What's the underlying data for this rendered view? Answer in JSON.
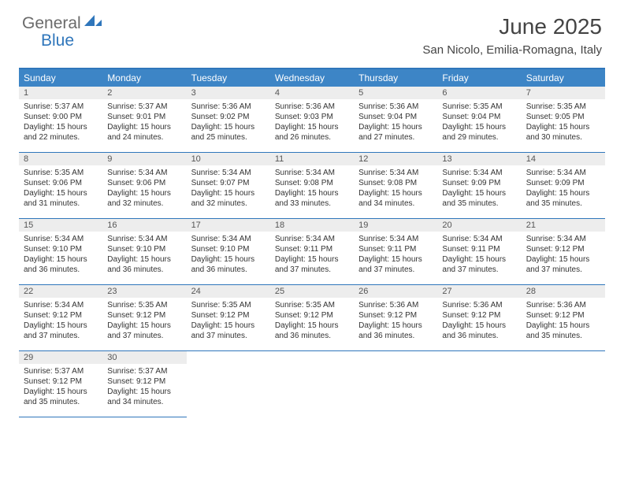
{
  "logo": {
    "text1": "General",
    "text2": "Blue"
  },
  "title": "June 2025",
  "location": "San Nicolo, Emilia-Romagna, Italy",
  "colors": {
    "accent": "#2f76bb",
    "header_bg": "#3d85c6",
    "daynum_bg": "#ededed"
  },
  "dayheads": [
    "Sunday",
    "Monday",
    "Tuesday",
    "Wednesday",
    "Thursday",
    "Friday",
    "Saturday"
  ],
  "weeks": [
    [
      {
        "n": "1",
        "sr": "Sunrise: 5:37 AM",
        "ss": "Sunset: 9:00 PM",
        "d1": "Daylight: 15 hours",
        "d2": "and 22 minutes."
      },
      {
        "n": "2",
        "sr": "Sunrise: 5:37 AM",
        "ss": "Sunset: 9:01 PM",
        "d1": "Daylight: 15 hours",
        "d2": "and 24 minutes."
      },
      {
        "n": "3",
        "sr": "Sunrise: 5:36 AM",
        "ss": "Sunset: 9:02 PM",
        "d1": "Daylight: 15 hours",
        "d2": "and 25 minutes."
      },
      {
        "n": "4",
        "sr": "Sunrise: 5:36 AM",
        "ss": "Sunset: 9:03 PM",
        "d1": "Daylight: 15 hours",
        "d2": "and 26 minutes."
      },
      {
        "n": "5",
        "sr": "Sunrise: 5:36 AM",
        "ss": "Sunset: 9:04 PM",
        "d1": "Daylight: 15 hours",
        "d2": "and 27 minutes."
      },
      {
        "n": "6",
        "sr": "Sunrise: 5:35 AM",
        "ss": "Sunset: 9:04 PM",
        "d1": "Daylight: 15 hours",
        "d2": "and 29 minutes."
      },
      {
        "n": "7",
        "sr": "Sunrise: 5:35 AM",
        "ss": "Sunset: 9:05 PM",
        "d1": "Daylight: 15 hours",
        "d2": "and 30 minutes."
      }
    ],
    [
      {
        "n": "8",
        "sr": "Sunrise: 5:35 AM",
        "ss": "Sunset: 9:06 PM",
        "d1": "Daylight: 15 hours",
        "d2": "and 31 minutes."
      },
      {
        "n": "9",
        "sr": "Sunrise: 5:34 AM",
        "ss": "Sunset: 9:06 PM",
        "d1": "Daylight: 15 hours",
        "d2": "and 32 minutes."
      },
      {
        "n": "10",
        "sr": "Sunrise: 5:34 AM",
        "ss": "Sunset: 9:07 PM",
        "d1": "Daylight: 15 hours",
        "d2": "and 32 minutes."
      },
      {
        "n": "11",
        "sr": "Sunrise: 5:34 AM",
        "ss": "Sunset: 9:08 PM",
        "d1": "Daylight: 15 hours",
        "d2": "and 33 minutes."
      },
      {
        "n": "12",
        "sr": "Sunrise: 5:34 AM",
        "ss": "Sunset: 9:08 PM",
        "d1": "Daylight: 15 hours",
        "d2": "and 34 minutes."
      },
      {
        "n": "13",
        "sr": "Sunrise: 5:34 AM",
        "ss": "Sunset: 9:09 PM",
        "d1": "Daylight: 15 hours",
        "d2": "and 35 minutes."
      },
      {
        "n": "14",
        "sr": "Sunrise: 5:34 AM",
        "ss": "Sunset: 9:09 PM",
        "d1": "Daylight: 15 hours",
        "d2": "and 35 minutes."
      }
    ],
    [
      {
        "n": "15",
        "sr": "Sunrise: 5:34 AM",
        "ss": "Sunset: 9:10 PM",
        "d1": "Daylight: 15 hours",
        "d2": "and 36 minutes."
      },
      {
        "n": "16",
        "sr": "Sunrise: 5:34 AM",
        "ss": "Sunset: 9:10 PM",
        "d1": "Daylight: 15 hours",
        "d2": "and 36 minutes."
      },
      {
        "n": "17",
        "sr": "Sunrise: 5:34 AM",
        "ss": "Sunset: 9:10 PM",
        "d1": "Daylight: 15 hours",
        "d2": "and 36 minutes."
      },
      {
        "n": "18",
        "sr": "Sunrise: 5:34 AM",
        "ss": "Sunset: 9:11 PM",
        "d1": "Daylight: 15 hours",
        "d2": "and 37 minutes."
      },
      {
        "n": "19",
        "sr": "Sunrise: 5:34 AM",
        "ss": "Sunset: 9:11 PM",
        "d1": "Daylight: 15 hours",
        "d2": "and 37 minutes."
      },
      {
        "n": "20",
        "sr": "Sunrise: 5:34 AM",
        "ss": "Sunset: 9:11 PM",
        "d1": "Daylight: 15 hours",
        "d2": "and 37 minutes."
      },
      {
        "n": "21",
        "sr": "Sunrise: 5:34 AM",
        "ss": "Sunset: 9:12 PM",
        "d1": "Daylight: 15 hours",
        "d2": "and 37 minutes."
      }
    ],
    [
      {
        "n": "22",
        "sr": "Sunrise: 5:34 AM",
        "ss": "Sunset: 9:12 PM",
        "d1": "Daylight: 15 hours",
        "d2": "and 37 minutes."
      },
      {
        "n": "23",
        "sr": "Sunrise: 5:35 AM",
        "ss": "Sunset: 9:12 PM",
        "d1": "Daylight: 15 hours",
        "d2": "and 37 minutes."
      },
      {
        "n": "24",
        "sr": "Sunrise: 5:35 AM",
        "ss": "Sunset: 9:12 PM",
        "d1": "Daylight: 15 hours",
        "d2": "and 37 minutes."
      },
      {
        "n": "25",
        "sr": "Sunrise: 5:35 AM",
        "ss": "Sunset: 9:12 PM",
        "d1": "Daylight: 15 hours",
        "d2": "and 36 minutes."
      },
      {
        "n": "26",
        "sr": "Sunrise: 5:36 AM",
        "ss": "Sunset: 9:12 PM",
        "d1": "Daylight: 15 hours",
        "d2": "and 36 minutes."
      },
      {
        "n": "27",
        "sr": "Sunrise: 5:36 AM",
        "ss": "Sunset: 9:12 PM",
        "d1": "Daylight: 15 hours",
        "d2": "and 36 minutes."
      },
      {
        "n": "28",
        "sr": "Sunrise: 5:36 AM",
        "ss": "Sunset: 9:12 PM",
        "d1": "Daylight: 15 hours",
        "d2": "and 35 minutes."
      }
    ],
    [
      {
        "n": "29",
        "sr": "Sunrise: 5:37 AM",
        "ss": "Sunset: 9:12 PM",
        "d1": "Daylight: 15 hours",
        "d2": "and 35 minutes."
      },
      {
        "n": "30",
        "sr": "Sunrise: 5:37 AM",
        "ss": "Sunset: 9:12 PM",
        "d1": "Daylight: 15 hours",
        "d2": "and 34 minutes."
      }
    ]
  ]
}
